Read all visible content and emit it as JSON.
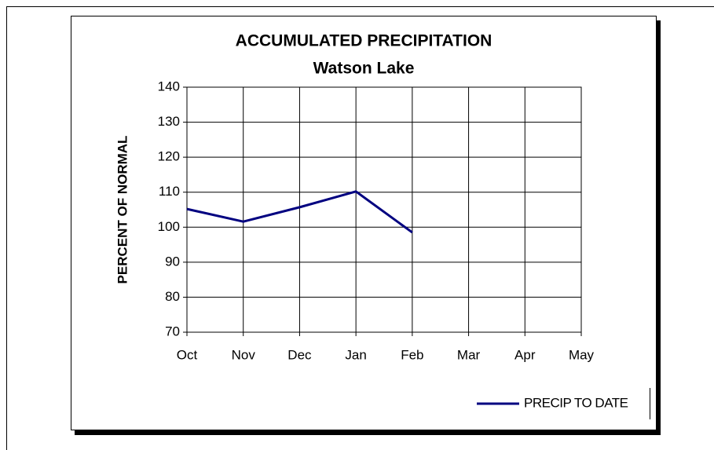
{
  "chart_data": {
    "type": "line",
    "title": "ACCUMULATED PRECIPITATION",
    "subtitle": "Watson Lake",
    "y_label": "PERCENT OF NORMAL",
    "categories": [
      "Oct",
      "Nov",
      "Dec",
      "Jan",
      "Feb",
      "Mar",
      "Apr",
      "May"
    ],
    "series": [
      {
        "name": "PRECIP TO DATE",
        "color": "#000080",
        "values": [
          105.2,
          101.6,
          105.7,
          110.2,
          98.5,
          null,
          null,
          null
        ]
      }
    ],
    "ylim": [
      70,
      140
    ],
    "yticks": [
      70,
      80,
      90,
      100,
      110,
      120,
      130,
      140
    ],
    "grid": true,
    "legend": "bottom-right"
  }
}
